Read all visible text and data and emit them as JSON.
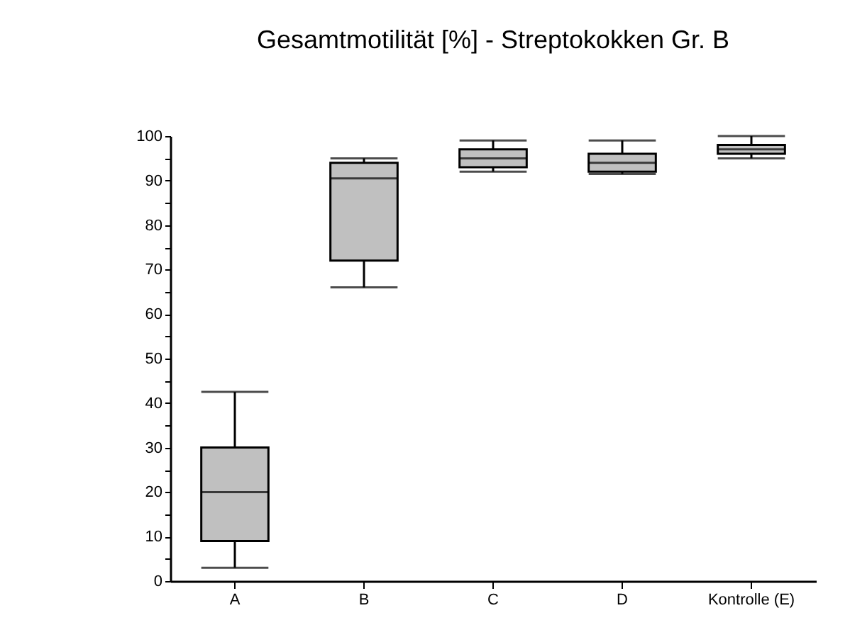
{
  "chart_data": {
    "type": "box",
    "title": "Gesamtmotilität [%] -  Streptokokken Gr. B",
    "categories": [
      "A",
      "B",
      "C",
      "D",
      "Kontrolle (E)"
    ],
    "boxes": [
      {
        "low": 3,
        "q1": 9,
        "median": 20,
        "q3": 30,
        "high": 42.5
      },
      {
        "low": 66,
        "q1": 72,
        "median": 90.5,
        "q3": 94,
        "high": 95
      },
      {
        "low": 92,
        "q1": 93,
        "median": 95,
        "q3": 97,
        "high": 99
      },
      {
        "low": 91.5,
        "q1": 92,
        "median": 94,
        "q3": 96,
        "high": 99
      },
      {
        "low": 95,
        "q1": 96,
        "median": 97,
        "q3": 98,
        "high": 100
      }
    ],
    "color": "#c0c0c0",
    "ylim": [
      0,
      100
    ],
    "yticks": [
      0,
      {
        "value": 5,
        "label": null
      },
      10,
      {
        "value": 15,
        "label": null
      },
      20,
      {
        "value": 25,
        "label": null
      },
      30,
      {
        "value": 35,
        "label": null
      },
      40,
      {
        "value": 45,
        "label": null
      },
      50,
      {
        "value": 55,
        "label": null
      },
      60,
      {
        "value": 65,
        "label": null
      },
      70,
      {
        "value": 75,
        "label": null
      },
      80,
      {
        "value": 85,
        "label": null
      },
      90,
      {
        "value": 95,
        "label": null
      },
      100
    ],
    "grid": false
  }
}
